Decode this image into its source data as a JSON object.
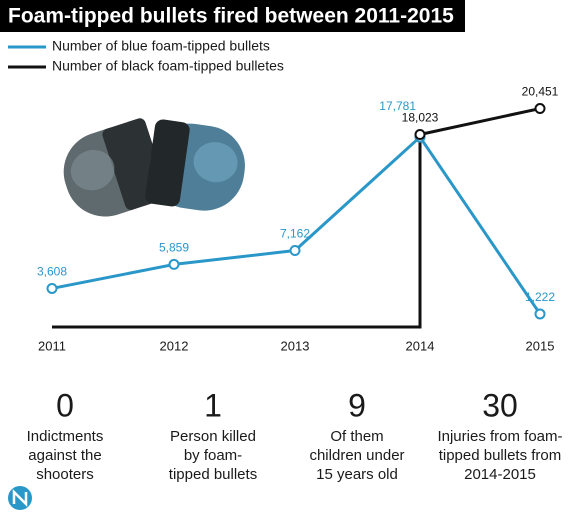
{
  "chart_data": {
    "type": "line",
    "title": "Foam-tipped bullets fired between 2011-2015",
    "categories": [
      "2011",
      "2012",
      "2013",
      "2014",
      "2015"
    ],
    "series": [
      {
        "name": "Number of blue foam-tipped bullets",
        "color": "#2a97c9",
        "values": [
          3608,
          5859,
          7162,
          17781,
          1222
        ],
        "value_labels": [
          "3,608",
          "5,859",
          "7,162",
          "17,781",
          "1,222"
        ]
      },
      {
        "name": "Number of black foam-tipped bulletes",
        "color": "#111111",
        "values": [
          0,
          0,
          0,
          18023,
          20451
        ],
        "value_labels": [
          null,
          null,
          null,
          "18,023",
          "20,451"
        ]
      }
    ],
    "ylim": [
      0,
      22000
    ]
  },
  "stats": [
    {
      "number": "0",
      "lines": [
        "Indictments",
        "against the",
        "shooters"
      ]
    },
    {
      "number": "1",
      "lines": [
        "Person killed",
        "by foam-",
        "tipped bullets"
      ]
    },
    {
      "number": "9",
      "lines": [
        "Of them",
        "children under",
        "15 years old"
      ]
    },
    {
      "number": "30",
      "lines": [
        "Injuries from foam-",
        "tipped bullets from",
        "2014-2015"
      ]
    }
  ]
}
